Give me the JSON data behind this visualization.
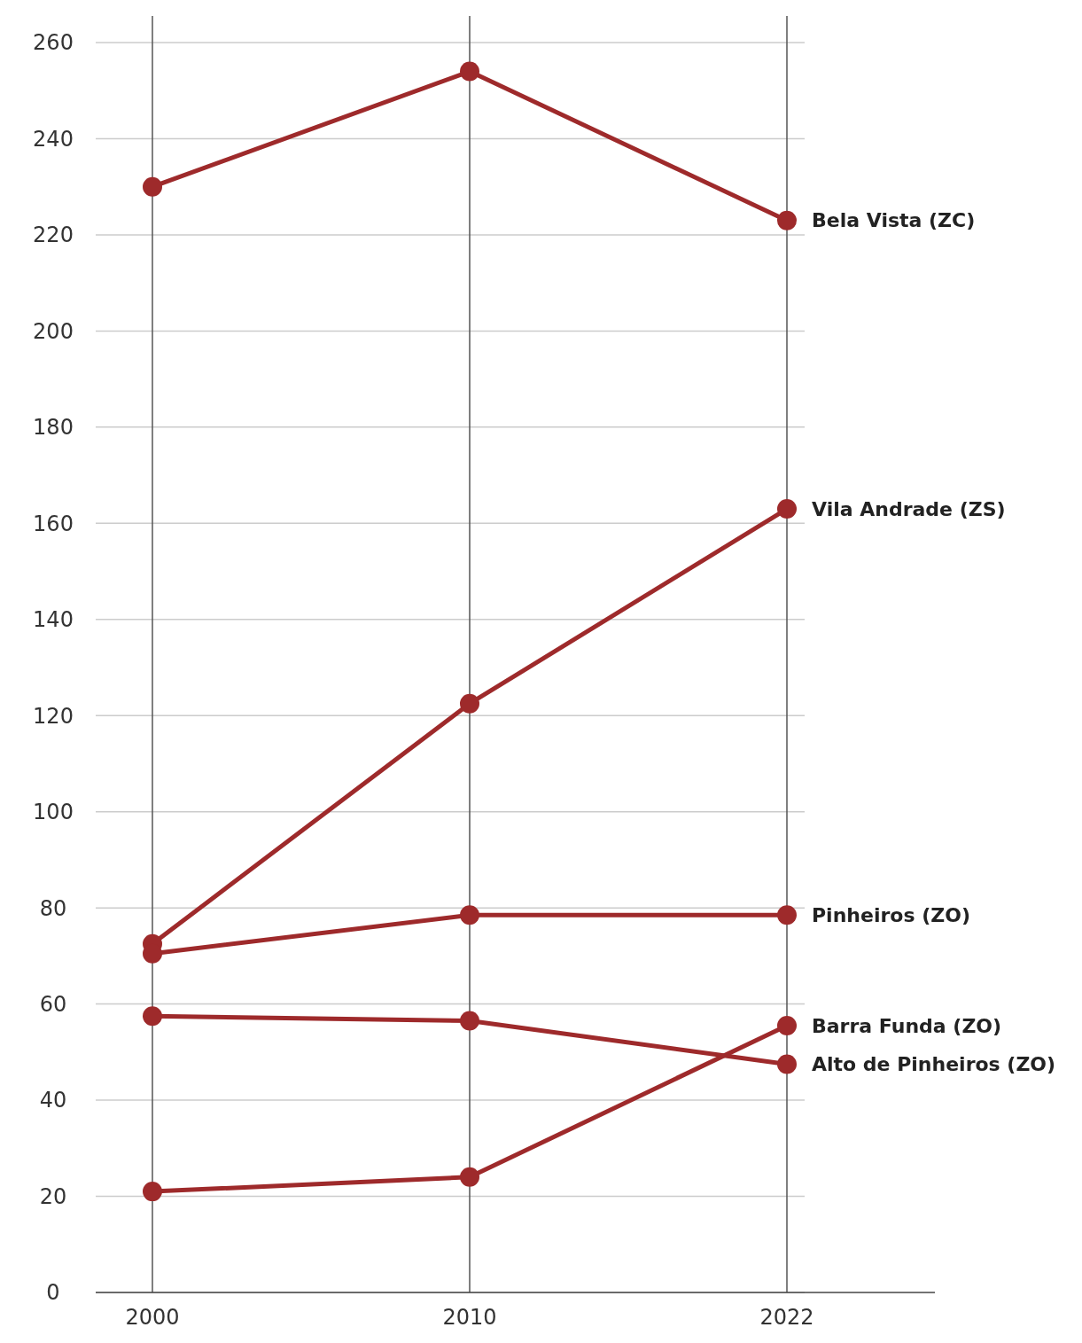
{
  "chart_data": {
    "type": "line",
    "categories": [
      "2000",
      "2010",
      "2022"
    ],
    "series": [
      {
        "name": "Bela Vista (ZC)",
        "color": "#9e2a2b",
        "values": [
          230,
          254,
          223
        ]
      },
      {
        "name": "Vila Andrade (ZS)",
        "color": "#9e2a2b",
        "values": [
          72.5,
          122.5,
          163
        ]
      },
      {
        "name": "Pinheiros (ZO)",
        "color": "#9e2a2b",
        "values": [
          70.5,
          78.5,
          78.5
        ]
      },
      {
        "name": "Barra Funda (ZO)",
        "color": "#9e2a2b",
        "values": [
          21,
          24,
          55.5
        ]
      },
      {
        "name": "Alto de Pinheiros (ZO)",
        "color": "#9e2a2b",
        "values": [
          57.5,
          56.5,
          47.5
        ]
      }
    ],
    "ylim": [
      0,
      260
    ],
    "yticks": [
      0,
      20,
      40,
      60,
      80,
      100,
      120,
      140,
      160,
      180,
      200,
      220,
      240,
      260
    ],
    "grid": true,
    "marker": "circle",
    "line_style": "solid"
  }
}
